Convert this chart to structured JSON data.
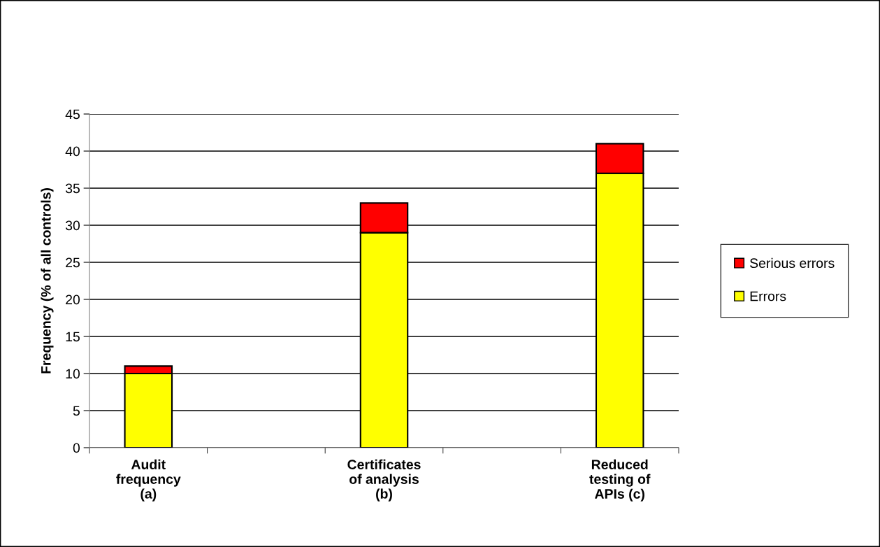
{
  "chart_data": {
    "type": "bar",
    "stacked": true,
    "ylabel": "Frequency (% of all controls)",
    "categories": [
      "Audit\nfrequency\n(a)",
      "Certificates\nof analysis\n(b)",
      "Reduced\ntesting of\nAPIs (c)"
    ],
    "series": [
      {
        "name": "Errors",
        "color": "#ffff00",
        "values": [
          10,
          29,
          37
        ]
      },
      {
        "name": "Serious errors",
        "color": "#ff0000",
        "values": [
          1,
          4,
          4
        ]
      }
    ],
    "ylim": [
      0,
      45
    ],
    "yticks": [
      0,
      5,
      10,
      15,
      20,
      25,
      30,
      35,
      40,
      45
    ],
    "grid": "y",
    "legend": "right"
  }
}
